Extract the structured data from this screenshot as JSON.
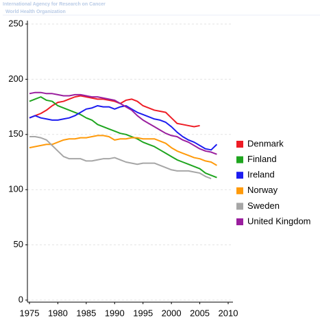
{
  "chart_data": {
    "type": "line",
    "title": "International Agency for Research on Cancer",
    "subtitle": "World Health Organization",
    "x": [
      1975,
      1976,
      1977,
      1978,
      1979,
      1980,
      1981,
      1982,
      1983,
      1984,
      1985,
      1986,
      1987,
      1988,
      1989,
      1990,
      1991,
      1992,
      1993,
      1994,
      1995,
      1996,
      1997,
      1998,
      1999,
      2000,
      2001,
      2002,
      2003,
      2004,
      2005,
      2006,
      2007,
      2008
    ],
    "series": [
      {
        "name": "Denmark",
        "color": "#ee1c25",
        "values": [
          165,
          167,
          169,
          172,
          176,
          179,
          180,
          182,
          184,
          185,
          184,
          183,
          182,
          182,
          181,
          180,
          178,
          181,
          182,
          180,
          176,
          174,
          172,
          171,
          170,
          165,
          160,
          159,
          158,
          157,
          158,
          null,
          null,
          null
        ]
      },
      {
        "name": "Finland",
        "color": "#1ea51e",
        "values": [
          180,
          182,
          184,
          181,
          180,
          176,
          174,
          172,
          170,
          168,
          165,
          163,
          159,
          157,
          155,
          153,
          151,
          150,
          148,
          146,
          143,
          141,
          139,
          136,
          133,
          130,
          127,
          125,
          123,
          121,
          119,
          115,
          113,
          111
        ]
      },
      {
        "name": "Ireland",
        "color": "#1c1cf0",
        "values": [
          165,
          167,
          165,
          164,
          163,
          163,
          164,
          165,
          167,
          170,
          173,
          174,
          176,
          175,
          175,
          173,
          175,
          176,
          173,
          170,
          168,
          166,
          164,
          163,
          161,
          157,
          152,
          148,
          145,
          143,
          140,
          137,
          136,
          141
        ]
      },
      {
        "name": "Norway",
        "color": "#ff9a0a",
        "values": [
          138,
          139,
          140,
          141,
          141,
          143,
          145,
          146,
          146,
          147,
          147,
          148,
          149,
          149,
          148,
          145,
          146,
          146,
          147,
          147,
          146,
          146,
          146,
          144,
          142,
          138,
          135,
          133,
          131,
          129,
          128,
          126,
          125,
          122
        ]
      },
      {
        "name": "Sweden",
        "color": "#a6a6a6",
        "values": [
          148,
          148,
          147,
          145,
          140,
          135,
          130,
          128,
          128,
          128,
          126,
          126,
          127,
          128,
          128,
          129,
          127,
          125,
          124,
          123,
          124,
          124,
          124,
          122,
          120,
          118,
          117,
          117,
          117,
          116,
          115,
          112,
          110,
          null
        ]
      },
      {
        "name": "United Kingdom",
        "color": "#9a1e9e",
        "values": [
          187,
          188,
          188,
          187,
          187,
          186,
          185,
          185,
          186,
          186,
          185,
          184,
          184,
          183,
          182,
          181,
          178,
          175,
          172,
          167,
          163,
          160,
          157,
          154,
          151,
          149,
          148,
          145,
          143,
          140,
          137,
          135,
          134,
          132
        ]
      }
    ],
    "xlim": [
      1975,
      2010
    ],
    "xticks": [
      1975,
      1980,
      1985,
      1990,
      1995,
      2000,
      2005,
      2010
    ],
    "ylim": [
      0,
      250
    ],
    "yticks": [
      0,
      50,
      100,
      150,
      200,
      250
    ],
    "grid": true,
    "legend": "right"
  }
}
